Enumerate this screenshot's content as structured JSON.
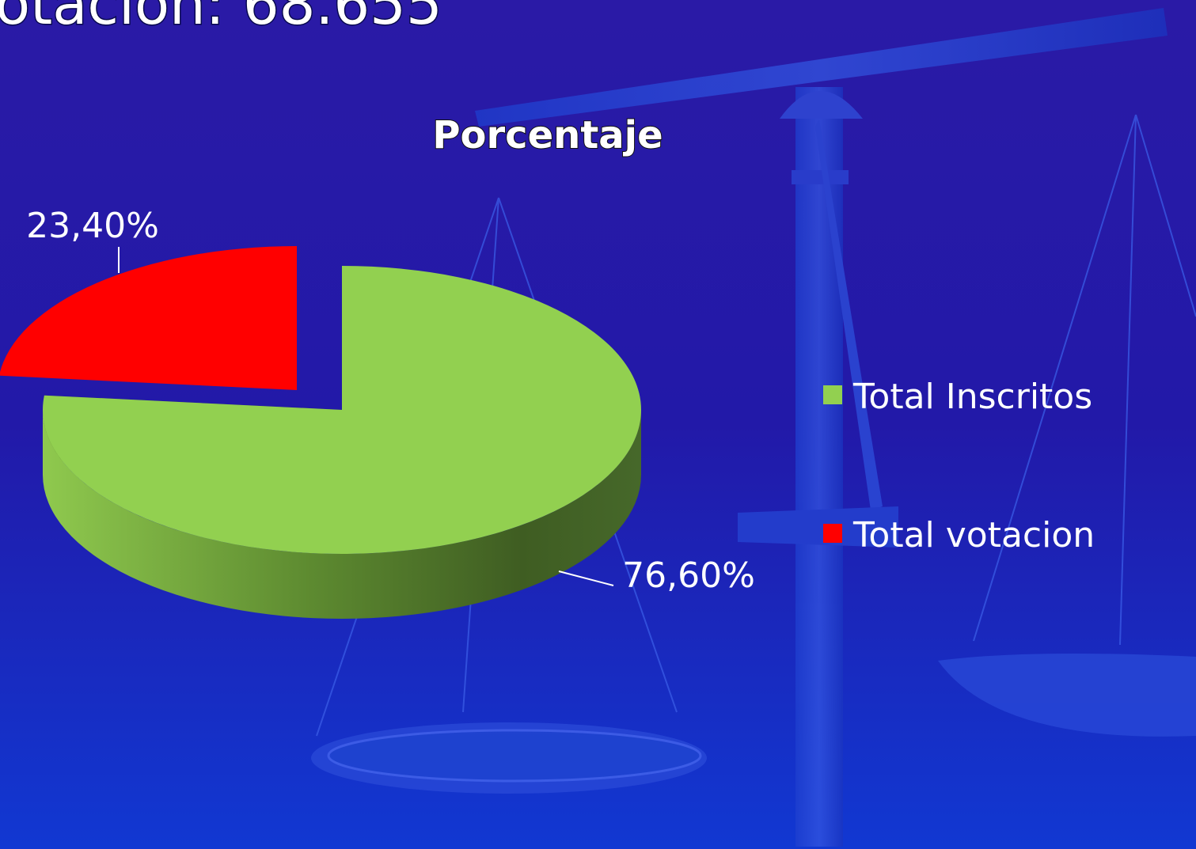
{
  "slide": {
    "heading": "otación: 68.655"
  },
  "chart_data": {
    "type": "pie3d",
    "title": "Porcentaje",
    "categories": [
      "Total Inscritos",
      "Total votacion"
    ],
    "values": [
      76.6,
      23.4
    ],
    "value_labels": [
      "76,60%",
      "23,40%"
    ],
    "colors": [
      "#92d050",
      "#ff0000"
    ],
    "legend": "right"
  }
}
